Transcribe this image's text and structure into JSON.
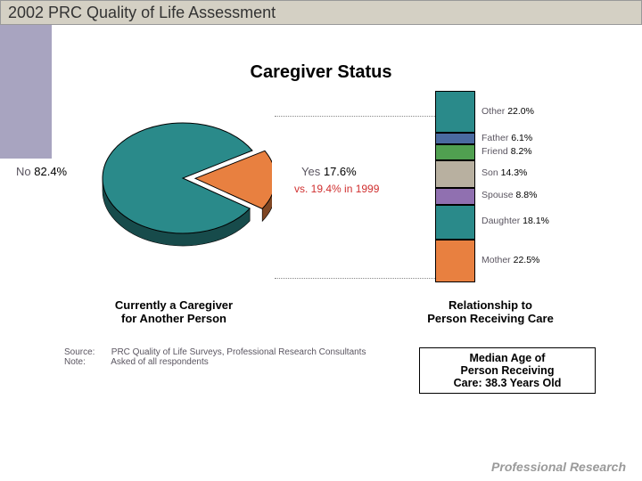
{
  "title": "2002 PRC Quality of Life Assessment",
  "chart_title": "Caregiver Status",
  "background_color": "#ffffff",
  "side_strip_color": "#a8a4c0",
  "title_bar_color": "#d4d0c4",
  "pie": {
    "type": "pie",
    "no": {
      "label": "No",
      "value": "82.4%",
      "pct": 82.4,
      "color": "#2a8a8a"
    },
    "yes": {
      "label": "Yes",
      "value": "17.6%",
      "pct": 17.6,
      "color": "#e88040"
    },
    "outline": "#000000",
    "exploded": "yes",
    "subtitle_line1": "Currently a Caregiver",
    "subtitle_line2": "for Another Person"
  },
  "compare_text": "vs. 19.4% in 1999",
  "compare_color": "#d03030",
  "stacked": {
    "type": "stacked-bar",
    "outline": "#000000",
    "segments": [
      {
        "label": "Other",
        "value": "22.0%",
        "pct": 22.0,
        "color": "#2a8a8a"
      },
      {
        "label": "Father",
        "value": "6.1%",
        "pct": 6.1,
        "color": "#4a6aa0"
      },
      {
        "label": "Friend",
        "value": "8.2%",
        "pct": 8.2,
        "color": "#50a050"
      },
      {
        "label": "Son",
        "value": "14.3%",
        "pct": 14.3,
        "color": "#b8b0a0"
      },
      {
        "label": "Spouse",
        "value": "8.8%",
        "pct": 8.8,
        "color": "#9070b0"
      },
      {
        "label": "Daughter",
        "value": "18.1%",
        "pct": 18.1,
        "color": "#2a8a8a"
      },
      {
        "label": "Mother",
        "value": "22.5%",
        "pct": 22.5,
        "color": "#e88040"
      }
    ],
    "subtitle_line1": "Relationship to",
    "subtitle_line2": "Person Receiving Care"
  },
  "source": {
    "label1": "Source:",
    "text1": "PRC Quality of Life Surveys, Professional Research Consultants",
    "label2": "Note:",
    "text2": "Asked of all respondents"
  },
  "median_box": {
    "line1": "Median Age of",
    "line2": "Person Receiving",
    "line3": "Care: 38.3 Years Old"
  },
  "footer": "Professional Research"
}
